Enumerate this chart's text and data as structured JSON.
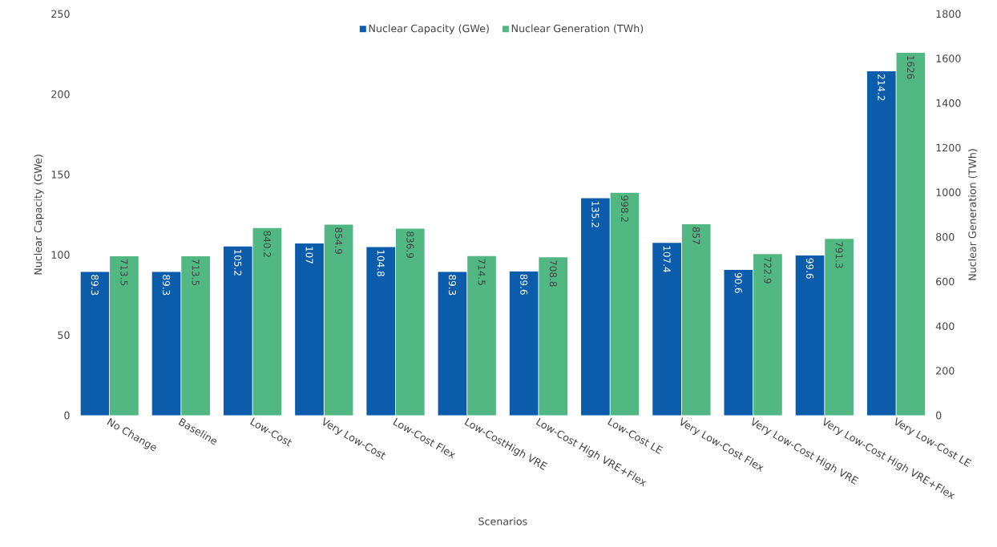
{
  "chart_data": {
    "type": "bar",
    "categories": [
      "No Change",
      "Baseline",
      "Low-Cost",
      "Very Low-Cost",
      "Low-Cost Flex",
      "Low-CostHigh VRE",
      "Low-Cost High VRE+Flex",
      "Low-Cost LE",
      "Very Low-Cost Flex",
      "Very Low-Cost High VRE",
      "Very Low-Cost High VRE+Flex",
      "Very Low-Cost LE"
    ],
    "series": [
      {
        "name": "Nuclear Capacity (GWe)",
        "color": "#0b5cab",
        "values": [
          89.3,
          89.3,
          105.2,
          107,
          104.8,
          89.3,
          89.6,
          135.2,
          107.4,
          90.6,
          99.6,
          214.2
        ]
      },
      {
        "name": "Nuclear Generation (TWh)",
        "color": "#52b883",
        "axis": "y2",
        "values": [
          713.5,
          713.5,
          840.2,
          854.9,
          836.9,
          714.5,
          708.8,
          998.2,
          857,
          722.9,
          791.3,
          1626
        ]
      }
    ],
    "xlabel": "Scenarios",
    "ylabel": "Nuclear Capacity (GWe)",
    "y2label": "Nuclear Generation (TWh)",
    "ylim": [
      0,
      250
    ],
    "yticks": [
      0,
      50,
      100,
      150,
      200,
      250
    ],
    "y2lim": [
      0,
      1800
    ],
    "y2ticks": [
      0,
      200,
      400,
      600,
      800,
      1000,
      1200,
      1400,
      1600,
      1800
    ],
    "legend": "top",
    "data_labels": true
  }
}
